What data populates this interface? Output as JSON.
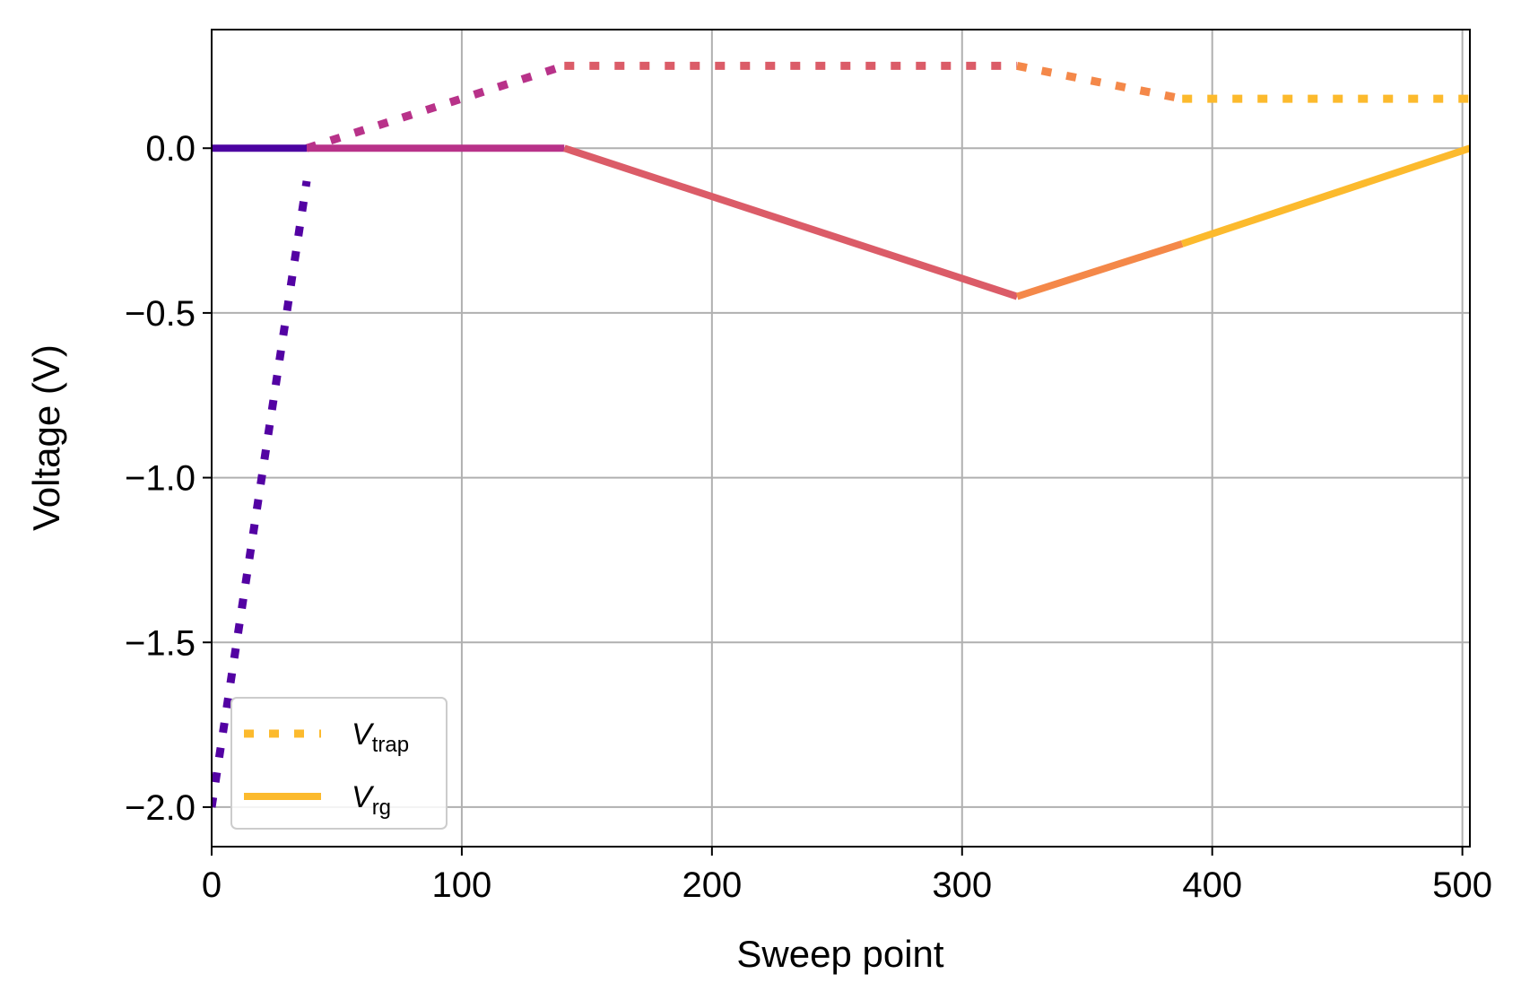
{
  "chart_data": {
    "type": "line",
    "xlabel": "Sweep point",
    "ylabel": "Voltage (V)",
    "xlim": [
      0,
      503
    ],
    "ylim": [
      -2.12,
      0.36
    ],
    "grid": true,
    "legend_position": "lower-left",
    "colormap": "plasma",
    "x_ticks": [
      {
        "value": 0,
        "label": "0"
      },
      {
        "value": 100,
        "label": "100"
      },
      {
        "value": 200,
        "label": "200"
      },
      {
        "value": 300,
        "label": "300"
      },
      {
        "value": 400,
        "label": "400"
      },
      {
        "value": 500,
        "label": "500"
      }
    ],
    "y_ticks": [
      {
        "value": 0.0,
        "label": "0.0"
      },
      {
        "value": -0.5,
        "label": "−0.5"
      },
      {
        "value": -1.0,
        "label": "−1.0"
      },
      {
        "value": -1.5,
        "label": "−1.5"
      },
      {
        "value": -2.0,
        "label": "−2.0"
      }
    ],
    "legend": [
      {
        "symbol": "V",
        "subscript": "trap",
        "style": "dotted",
        "color": "#fcba2d"
      },
      {
        "symbol": "V",
        "subscript": "rg",
        "style": "solid",
        "color": "#fcba2d"
      }
    ],
    "series": [
      {
        "name": "V_trap",
        "style": "dotted",
        "segments": [
          {
            "x": [
              0,
              38
            ],
            "y": [
              -2.0,
              -0.1
            ],
            "color": "#5302a3"
          },
          {
            "x": [
              38,
              141
            ],
            "y": [
              0.0,
              0.25
            ],
            "color": "#b83289"
          },
          {
            "x": [
              141,
              322
            ],
            "y": [
              0.25,
              0.25
            ],
            "color": "#db5c68"
          },
          {
            "x": [
              322,
              388
            ],
            "y": [
              0.25,
              0.15
            ],
            "color": "#f48849"
          },
          {
            "x": [
              388,
              503
            ],
            "y": [
              0.15,
              0.15
            ],
            "color": "#fcba2d"
          }
        ]
      },
      {
        "name": "V_rg",
        "style": "solid",
        "segments": [
          {
            "x": [
              0,
              38
            ],
            "y": [
              0.0,
              0.0
            ],
            "color": "#4c02a1"
          },
          {
            "x": [
              38,
              141
            ],
            "y": [
              0.0,
              0.0
            ],
            "color": "#b83289"
          },
          {
            "x": [
              141,
              322
            ],
            "y": [
              0.0,
              -0.45
            ],
            "color": "#db5c68"
          },
          {
            "x": [
              322,
              388
            ],
            "y": [
              -0.45,
              -0.29
            ],
            "color": "#f48849"
          },
          {
            "x": [
              388,
              503
            ],
            "y": [
              -0.29,
              0.0
            ],
            "color": "#fcba2d"
          }
        ]
      }
    ]
  }
}
